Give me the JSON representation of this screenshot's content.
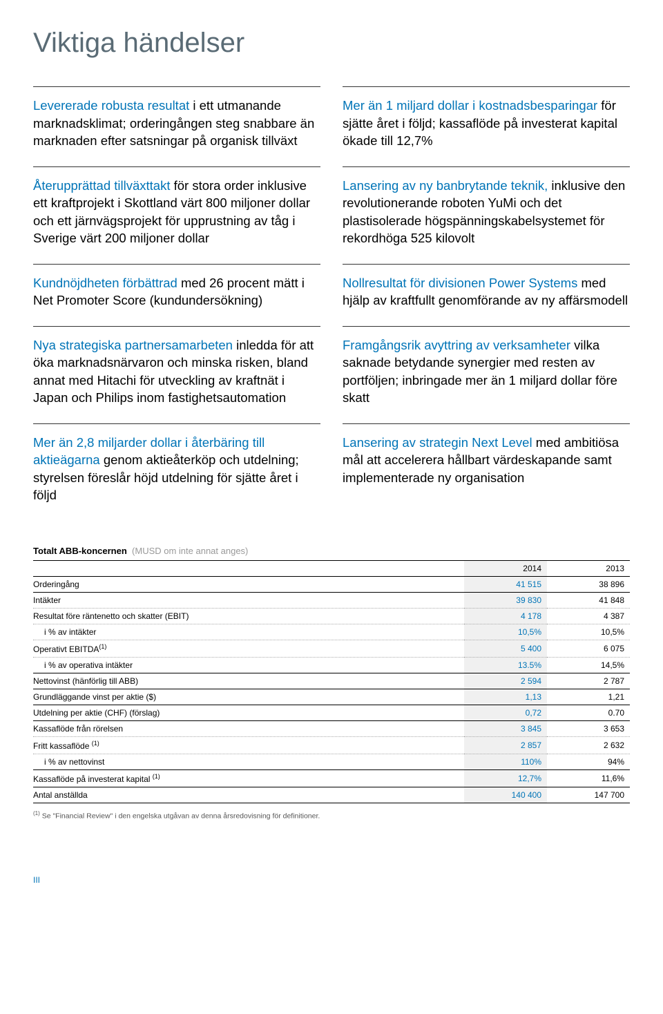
{
  "title": "Viktiga händelser",
  "leftItems": [
    {
      "lead": "Levererade robusta resultat",
      "rest": " i ett utmanande marknadsklimat; orderingången steg snabbare än marknaden efter satsningar på organisk tillväxt"
    },
    {
      "lead": "Återupprättad tillväxttakt",
      "rest": " för stora order inklusive ett kraftprojekt i Skottland värt 800 miljoner dollar och ett järnvägsprojekt för upprustning av tåg i Sverige värt 200 miljoner dollar"
    },
    {
      "lead": "Kundnöjdheten förbättrad",
      "rest": " med 26 procent mätt i Net Promoter Score (kundundersökning)"
    },
    {
      "lead": "Nya strategiska partnersamarbeten",
      "rest": " inledda för att öka marknadsnärvaron och minska risken, bland annat med Hitachi för utveckling av kraftnät i Japan och Philips inom fastighetsautomation"
    },
    {
      "lead": "Mer än 2,8 miljarder dollar i återbäring till aktieägarna",
      "rest": " genom aktieåterköp och utdelning; styrelsen föreslår höjd utdelning för sjätte året i följd"
    }
  ],
  "rightItems": [
    {
      "lead": "Mer än 1 miljard dollar i kostnadsbesparingar",
      "rest": " för sjätte året i följd; kassaflöde på investerat kapital ökade till 12,7%"
    },
    {
      "lead": "Lansering av ny banbrytande teknik,",
      "rest": " inklusive den revolutionerande roboten YuMi och det plastisolerade högspänningskabelsystemet för rekordhöga 525 kilovolt"
    },
    {
      "lead": "Nollresultat för divisionen Power Systems",
      "rest": " med hjälp av kraftfullt genomförande av ny affärsmodell"
    },
    {
      "lead": "Framgångsrik avyttring av verksamheter",
      "rest": " vilka saknade betydande synergier med resten av portföljen; inbringade mer än 1 miljard dollar före skatt"
    },
    {
      "lead": "Lansering av strategin Next Level",
      "rest": " med ambitiösa mål att accelerera hållbart värdeskapande samt implementerade ny organisation"
    }
  ],
  "table": {
    "title": "Totalt ABB-koncernen",
    "subtitle": "(MUSD om inte annat anges)",
    "years": [
      "2014",
      "2013"
    ],
    "rows": [
      {
        "label": "Orderingång",
        "y1": "41 515",
        "y2": "38 896",
        "border": "solid"
      },
      {
        "label": "Intäkter",
        "y1": "39 830",
        "y2": "41 848",
        "border": "dotted"
      },
      {
        "label": "Resultat före räntenetto och skatter (EBIT)",
        "y1": "4 178",
        "y2": "4 387",
        "border": "dotted"
      },
      {
        "label": "i % av intäkter",
        "y1": "10,5%",
        "y2": "10,5%",
        "border": "dotted",
        "indent": true
      },
      {
        "label": "Operativt EBITDA",
        "sup": "(1)",
        "y1": "5 400",
        "y2": "6 075",
        "border": "dotted"
      },
      {
        "label": "i % av operativa intäkter",
        "y1": "13.5%",
        "y2": "14,5%",
        "border": "solid",
        "indent": true
      },
      {
        "label": "Nettovinst (hänförlig till ABB)",
        "y1": "2 594",
        "y2": "2 787",
        "border": "solid"
      },
      {
        "label": "Grundläggande vinst per aktie ($)",
        "y1": "1,13",
        "y2": "1,21",
        "border": "solid"
      },
      {
        "label": "Utdelning per aktie (CHF) (förslag)",
        "y1": "0,72",
        "y2": "0.70",
        "border": "solid"
      },
      {
        "label": "Kassaflöde från rörelsen",
        "y1": "3 845",
        "y2": "3 653",
        "border": "dotted"
      },
      {
        "label": "Fritt kassaflöde ",
        "sup": "(1)",
        "y1": "2 857",
        "y2": "2 632",
        "border": "dotted"
      },
      {
        "label": "i % av nettovinst",
        "y1": "110%",
        "y2": "94%",
        "border": "solid",
        "indent": true
      },
      {
        "label": "Kassaflöde på investerat kapital ",
        "sup": "(1)",
        "y1": "12,7%",
        "y2": "11,6%",
        "border": "solid"
      },
      {
        "label": "Antal anställda",
        "y1": "140 400",
        "y2": "147 700",
        "border": "solid"
      }
    ]
  },
  "footnote": {
    "sup": "(1)",
    "text": " Se \"Financial Review\" i den engelska utgåvan av denna årsredovisning för definitioner."
  },
  "pageNumber": "III"
}
